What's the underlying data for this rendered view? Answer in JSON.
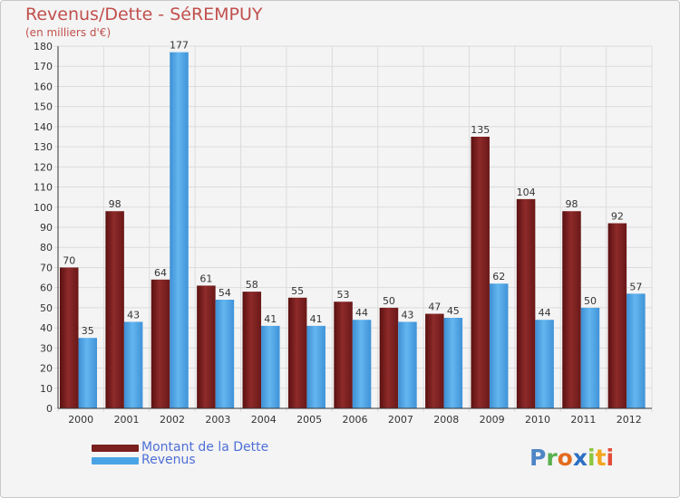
{
  "title": "Revenus/Dette - SéREMPUY",
  "subtitle": "(en milliers d'€)",
  "logo": {
    "text": "Proxiti",
    "letters": [
      "P",
      "r",
      "o",
      "x",
      "i",
      "t",
      "i"
    ],
    "colors": [
      "#4f86c6",
      "#5ab04f",
      "#e36b1f",
      "#2c6fc3",
      "#8dc63f",
      "#f2a51d",
      "#e34c38"
    ]
  },
  "colors": {
    "dette": "#7a1e1e",
    "revenus": "#49a4e6",
    "title": "#c0504d",
    "legend_text": "#4f6fd6"
  },
  "chart_data": {
    "type": "bar",
    "title": "Revenus/Dette - SéREMPUY",
    "ylabel": "(en milliers d'€)",
    "xlabel": "",
    "categories": [
      "2000",
      "2001",
      "2002",
      "2003",
      "2004",
      "2005",
      "2006",
      "2007",
      "2008",
      "2009",
      "2010",
      "2011",
      "2012"
    ],
    "series": [
      {
        "name": "Montant de la Dette",
        "values": [
          70,
          98,
          64,
          61,
          58,
          55,
          53,
          50,
          47,
          135,
          104,
          98,
          92
        ]
      },
      {
        "name": "Revenus",
        "values": [
          35,
          43,
          177,
          54,
          41,
          41,
          44,
          43,
          45,
          62,
          44,
          50,
          57
        ]
      }
    ],
    "ylim": [
      0,
      180
    ],
    "yticks": [
      0,
      10,
      20,
      30,
      40,
      50,
      60,
      70,
      80,
      90,
      100,
      110,
      120,
      130,
      140,
      150,
      160,
      170,
      180
    ],
    "grid": true,
    "legend": "bottom-left"
  }
}
